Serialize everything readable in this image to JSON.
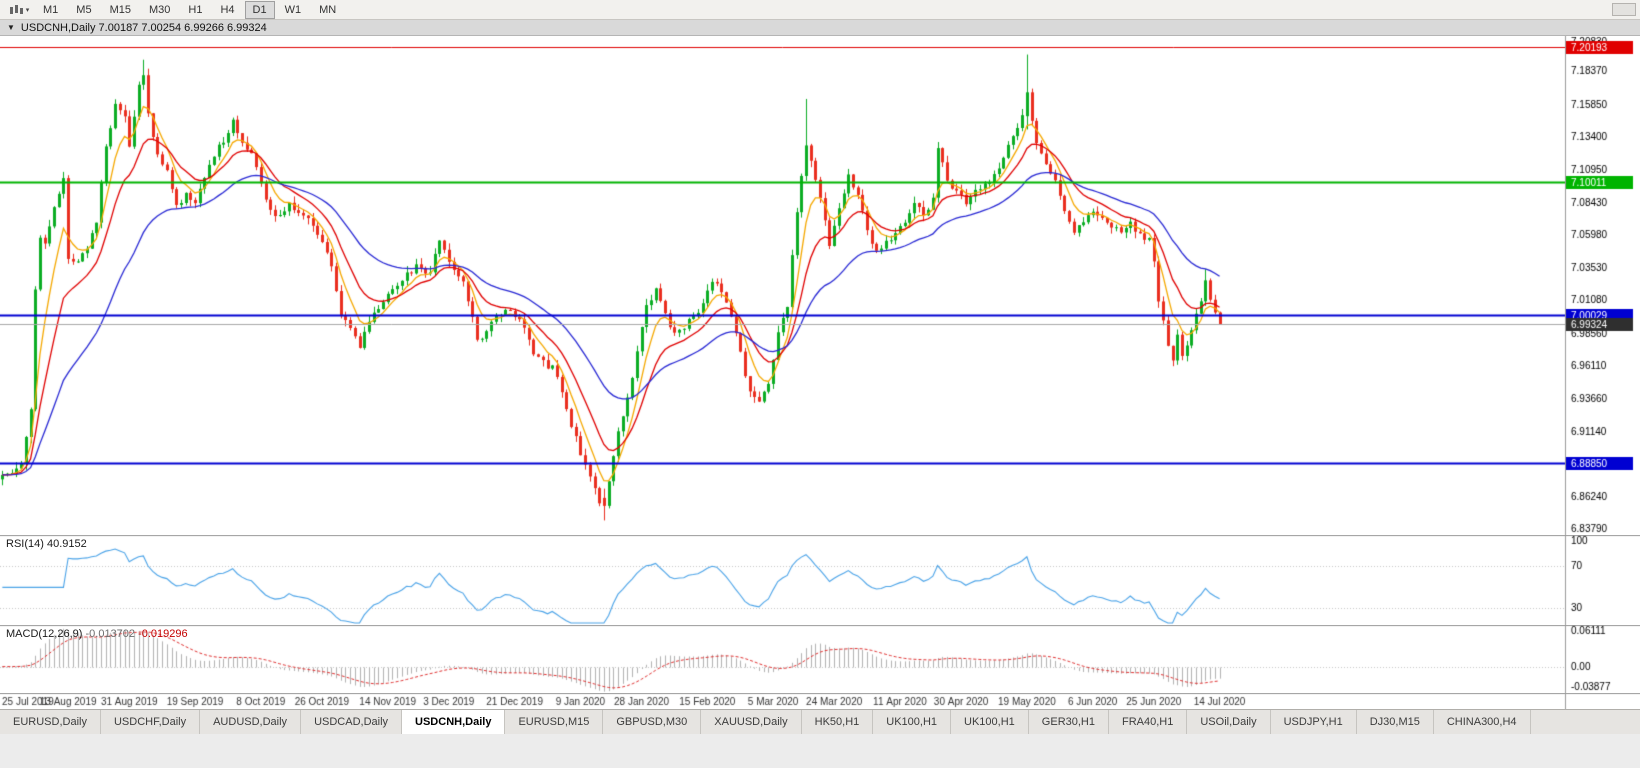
{
  "toolbar": {
    "timeframes": [
      "M1",
      "M5",
      "M15",
      "M30",
      "H1",
      "H4",
      "D1",
      "W1",
      "MN"
    ],
    "active_timeframe": "D1"
  },
  "chart_header": {
    "collapse_icon": "▼",
    "title": "USDCNH,Daily 7.00187 7.00254 6.99266 6.99324"
  },
  "indicators": {
    "rsi_label": "RSI(14)",
    "rsi_value": "40.9152",
    "macd_label": "MACD(12,26,9)",
    "macd_main_value": "-0.013702",
    "macd_signal_value": "-0.019296"
  },
  "chart_data": {
    "type": "candlestick",
    "symbol": "USDCNH",
    "period": "Daily",
    "last_bar": {
      "open": 7.00187,
      "high": 7.00254,
      "low": 6.99266,
      "close": 6.99324
    },
    "bars": 260,
    "slots": 333,
    "seed": 13,
    "first_open": 6.876,
    "noise": 0.0026,
    "wick": 0.005,
    "price_min": 6.834,
    "price_max": 7.2105,
    "up_color": "#0bad24",
    "down_color": "#ea2e1f",
    "price_ticks": [
      "7.20830",
      "7.18370",
      "7.15850",
      "7.13400",
      "7.10950",
      "7.08430",
      "7.05980",
      "7.03530",
      "7.01080",
      "6.98560",
      "6.96110",
      "6.93660",
      "6.91140",
      "6.88690",
      "6.86240",
      "6.83790"
    ],
    "close_waypoints": [
      [
        0,
        6.879
      ],
      [
        2,
        6.883
      ],
      [
        4,
        6.89
      ],
      [
        6,
        6.931
      ],
      [
        7,
        7.02
      ],
      [
        8,
        7.058
      ],
      [
        9,
        7.052
      ],
      [
        11,
        7.08
      ],
      [
        13,
        7.105
      ],
      [
        14,
        7.042
      ],
      [
        16,
        7.04
      ],
      [
        18,
        7.052
      ],
      [
        20,
        7.07
      ],
      [
        22,
        7.128
      ],
      [
        24,
        7.158
      ],
      [
        26,
        7.152
      ],
      [
        27,
        7.128
      ],
      [
        29,
        7.176
      ],
      [
        30,
        7.182
      ],
      [
        31,
        7.15
      ],
      [
        33,
        7.12
      ],
      [
        35,
        7.11
      ],
      [
        37,
        7.082
      ],
      [
        39,
        7.092
      ],
      [
        41,
        7.086
      ],
      [
        44,
        7.115
      ],
      [
        47,
        7.132
      ],
      [
        49,
        7.146
      ],
      [
        51,
        7.132
      ],
      [
        53,
        7.12
      ],
      [
        55,
        7.098
      ],
      [
        57,
        7.08
      ],
      [
        59,
        7.074
      ],
      [
        61,
        7.086
      ],
      [
        63,
        7.076
      ],
      [
        66,
        7.068
      ],
      [
        68,
        7.054
      ],
      [
        70,
        7.036
      ],
      [
        72,
        6.998
      ],
      [
        74,
        6.99
      ],
      [
        76,
        6.975
      ],
      [
        78,
        6.996
      ],
      [
        80,
        7.006
      ],
      [
        83,
        7.02
      ],
      [
        85,
        7.028
      ],
      [
        88,
        7.036
      ],
      [
        91,
        7.03
      ],
      [
        93,
        7.058
      ],
      [
        94,
        7.05
      ],
      [
        96,
        7.034
      ],
      [
        98,
        7.026
      ],
      [
        100,
        6.998
      ],
      [
        101,
        6.98
      ],
      [
        103,
        6.986
      ],
      [
        105,
        6.999
      ],
      [
        107,
        7.006
      ],
      [
        109,
        7.0
      ],
      [
        111,
        6.99
      ],
      [
        113,
        6.969
      ],
      [
        115,
        6.964
      ],
      [
        117,
        6.96
      ],
      [
        119,
        6.944
      ],
      [
        121,
        6.918
      ],
      [
        123,
        6.896
      ],
      [
        125,
        6.88
      ],
      [
        127,
        6.86
      ],
      [
        128,
        6.856
      ],
      [
        129,
        6.872
      ],
      [
        131,
        6.91
      ],
      [
        133,
        6.936
      ],
      [
        135,
        6.974
      ],
      [
        137,
        7.006
      ],
      [
        139,
        7.02
      ],
      [
        141,
        7.0
      ],
      [
        143,
        6.985
      ],
      [
        145,
        6.99
      ],
      [
        147,
        6.999
      ],
      [
        149,
        7.008
      ],
      [
        151,
        7.026
      ],
      [
        153,
        7.018
      ],
      [
        155,
        7.0
      ],
      [
        157,
        6.97
      ],
      [
        159,
        6.941
      ],
      [
        161,
        6.933
      ],
      [
        163,
        6.95
      ],
      [
        165,
        6.986
      ],
      [
        167,
        7.008
      ],
      [
        169,
        7.08
      ],
      [
        171,
        7.126
      ],
      [
        172,
        7.116
      ],
      [
        174,
        7.09
      ],
      [
        176,
        7.05
      ],
      [
        178,
        7.08
      ],
      [
        180,
        7.106
      ],
      [
        182,
        7.09
      ],
      [
        184,
        7.066
      ],
      [
        186,
        7.046
      ],
      [
        188,
        7.054
      ],
      [
        190,
        7.062
      ],
      [
        192,
        7.07
      ],
      [
        194,
        7.086
      ],
      [
        196,
        7.076
      ],
      [
        198,
        7.086
      ],
      [
        199,
        7.126
      ],
      [
        201,
        7.1
      ],
      [
        203,
        7.092
      ],
      [
        205,
        7.086
      ],
      [
        207,
        7.094
      ],
      [
        209,
        7.098
      ],
      [
        211,
        7.106
      ],
      [
        213,
        7.12
      ],
      [
        215,
        7.136
      ],
      [
        217,
        7.15
      ],
      [
        218,
        7.168
      ],
      [
        219,
        7.148
      ],
      [
        220,
        7.13
      ],
      [
        222,
        7.116
      ],
      [
        224,
        7.1
      ],
      [
        226,
        7.076
      ],
      [
        228,
        7.06
      ],
      [
        230,
        7.072
      ],
      [
        232,
        7.08
      ],
      [
        234,
        7.074
      ],
      [
        236,
        7.068
      ],
      [
        238,
        7.06
      ],
      [
        240,
        7.068
      ],
      [
        242,
        7.062
      ],
      [
        244,
        7.056
      ],
      [
        245,
        7.038
      ],
      [
        246,
        7.01
      ],
      [
        247,
        6.994
      ],
      [
        248,
        6.976
      ],
      [
        249,
        6.968
      ],
      [
        250,
        6.984
      ],
      [
        251,
        6.97
      ],
      [
        252,
        6.976
      ],
      [
        253,
        6.99
      ],
      [
        254,
        6.999
      ],
      [
        255,
        7.01
      ],
      [
        256,
        7.026
      ],
      [
        257,
        7.01
      ],
      [
        258,
        7.00187
      ],
      [
        259,
        6.99324
      ]
    ],
    "pinned_bars": {
      "30": {
        "h": 7.1926
      },
      "128": {
        "o": 6.862,
        "h": 6.869,
        "l": 6.845,
        "c": 6.856
      },
      "171": {
        "h": 7.163
      },
      "218": {
        "o": 7.15,
        "h": 7.1965,
        "l": 7.14,
        "c": 7.168
      },
      "256": {
        "h": 7.0345
      },
      "258": {
        "c": 7.00187
      },
      "259": {
        "o": 7.00187,
        "h": 7.00254,
        "l": 6.99266,
        "c": 6.99324
      }
    },
    "ma": [
      {
        "period": 6,
        "type": "ema",
        "color": "#f5a800"
      },
      {
        "period": 13,
        "type": "ema",
        "color": "#e00000"
      },
      {
        "period": 32,
        "type": "ema",
        "color": "#2727d4"
      }
    ],
    "hlines": [
      {
        "price": 7.20193,
        "label": "7.20193",
        "color": "#e00000",
        "width": 1
      },
      {
        "price": 7.10011,
        "label": "7.10011",
        "color": "#00b400",
        "width": 2
      },
      {
        "price": 7.00029,
        "label": "7.00029",
        "color": "#0000d2",
        "width": 2
      },
      {
        "price": 6.8885,
        "label": "6.88850",
        "color": "#0000d2",
        "width": 2
      }
    ],
    "current_price": {
      "value": 6.99324,
      "label": "6.99324",
      "line_color": "#a8a8a8",
      "badge_color": "#2f2f2f"
    },
    "rsi": {
      "period": 14,
      "color": "#4aa3e8",
      "levels": [
        70,
        30
      ],
      "scale_min": 14,
      "scale_max": 100,
      "tick_values": [
        100,
        70,
        30
      ],
      "tick_labels": [
        "100",
        "70",
        "30"
      ]
    },
    "macd": {
      "fast": 12,
      "slow": 26,
      "signal": 9,
      "hist_color": "#b2b2b2",
      "signal_color": "#e03030",
      "scale_min": -0.03877,
      "scale_max": 0.06111,
      "tick_labels": [
        "0.06111",
        "0.00",
        "-0.03877"
      ]
    },
    "date_labels": [
      "25 Jul 2019",
      "13 Aug 2019",
      "31 Aug 2019",
      "19 Sep 2019",
      "8 Oct 2019",
      "26 Oct 2019",
      "14 Nov 2019",
      "3 Dec 2019",
      "21 Dec 2019",
      "9 Jan 2020",
      "28 Jan 2020",
      "15 Feb 2020",
      "5 Mar 2020",
      "24 Mar 2020",
      "11 Apr 2020",
      "30 Apr 2020",
      "19 May 2020",
      "6 Jun 2020",
      "25 Jun 2020",
      "14 Jul 2020"
    ]
  },
  "tabs": {
    "active_index": 4,
    "items": [
      {
        "label": "EURUSD,Daily"
      },
      {
        "label": "USDCHF,Daily"
      },
      {
        "label": "AUDUSD,Daily"
      },
      {
        "label": "USDCAD,Daily"
      },
      {
        "label": "USDCNH,Daily"
      },
      {
        "label": "EURUSD,M15"
      },
      {
        "label": "GBPUSD,M30"
      },
      {
        "label": "XAUUSD,Daily"
      },
      {
        "label": "HK50,H1"
      },
      {
        "label": "UK100,H1"
      },
      {
        "label": "UK100,H1"
      },
      {
        "label": "GER30,H1"
      },
      {
        "label": "FRA40,H1"
      },
      {
        "label": "USOil,Daily"
      },
      {
        "label": "USDJPY,H1"
      },
      {
        "label": "DJ30,M15"
      },
      {
        "label": "CHINA300,H4"
      }
    ]
  }
}
